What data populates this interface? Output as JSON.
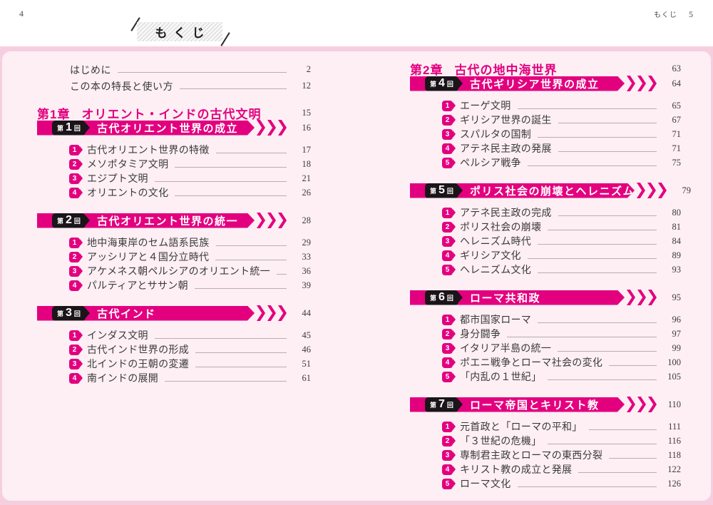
{
  "page": {
    "folio_left": "4",
    "folio_right_label": "もくじ",
    "folio_right_number": "5",
    "title": "もくじ"
  },
  "colors": {
    "magenta": "#e3007f",
    "outer_pink": "#f5cfdf",
    "inner_pink": "#fdeff4",
    "label_black": "#1b1418",
    "leader_line": "#b9adb3"
  },
  "front_matter": [
    {
      "label": "はじめに",
      "page": "2"
    },
    {
      "label": "この本の特長と使い方",
      "page": "12"
    }
  ],
  "columns": [
    {
      "side": "left",
      "blocks": [
        {
          "type": "front_matter"
        },
        {
          "type": "chapter",
          "no": "第1章",
          "title": "オリエント・インドの古代文明",
          "page": "15"
        },
        {
          "type": "section",
          "label_prefix": "第",
          "label_no": "1",
          "label_suffix": "回",
          "title": "古代オリエント世界の成立",
          "page": "16",
          "items": [
            {
              "no": "1",
              "label": "古代オリエント世界の特徴",
              "page": "17"
            },
            {
              "no": "2",
              "label": "メソポタミア文明",
              "page": "18"
            },
            {
              "no": "3",
              "label": "エジプト文明",
              "page": "21"
            },
            {
              "no": "4",
              "label": "オリエントの文化",
              "page": "26"
            }
          ]
        },
        {
          "type": "section",
          "label_prefix": "第",
          "label_no": "2",
          "label_suffix": "回",
          "title": "古代オリエント世界の統一",
          "page": "28",
          "items": [
            {
              "no": "1",
              "label": "地中海東岸のセム語系民族",
              "page": "29"
            },
            {
              "no": "2",
              "label": "アッシリアと４国分立時代",
              "page": "33"
            },
            {
              "no": "3",
              "label": "アケメネス朝ペルシアのオリエント統一",
              "page": "36"
            },
            {
              "no": "4",
              "label": "パルティアとササン朝",
              "page": "39"
            }
          ]
        },
        {
          "type": "section",
          "label_prefix": "第",
          "label_no": "3",
          "label_suffix": "回",
          "title": "古代インド",
          "page": "44",
          "items": [
            {
              "no": "1",
              "label": "インダス文明",
              "page": "45"
            },
            {
              "no": "2",
              "label": "古代インド世界の形成",
              "page": "46"
            },
            {
              "no": "3",
              "label": "北インドの王朝の変遷",
              "page": "51"
            },
            {
              "no": "4",
              "label": "南インドの展開",
              "page": "61"
            }
          ]
        }
      ]
    },
    {
      "side": "right",
      "blocks": [
        {
          "type": "chapter",
          "no": "第2章",
          "title": "古代の地中海世界",
          "page": "63"
        },
        {
          "type": "section",
          "label_prefix": "第",
          "label_no": "4",
          "label_suffix": "回",
          "title": "古代ギリシア世界の成立",
          "page": "64",
          "items": [
            {
              "no": "1",
              "label": "エーゲ文明",
              "page": "65"
            },
            {
              "no": "2",
              "label": "ギリシア世界の誕生",
              "page": "67"
            },
            {
              "no": "3",
              "label": "スパルタの国制",
              "page": "71"
            },
            {
              "no": "4",
              "label": "アテネ民主政の発展",
              "page": "71"
            },
            {
              "no": "5",
              "label": "ペルシア戦争",
              "page": "75"
            }
          ]
        },
        {
          "type": "section",
          "label_prefix": "第",
          "label_no": "5",
          "label_suffix": "回",
          "title": "ポリス社会の崩壊とヘレニズム",
          "page": "79",
          "items": [
            {
              "no": "1",
              "label": "アテネ民主政の完成",
              "page": "80"
            },
            {
              "no": "2",
              "label": "ポリス社会の崩壊",
              "page": "81"
            },
            {
              "no": "3",
              "label": "ヘレニズム時代",
              "page": "84"
            },
            {
              "no": "4",
              "label": "ギリシア文化",
              "page": "89"
            },
            {
              "no": "5",
              "label": "ヘレニズム文化",
              "page": "93"
            }
          ]
        },
        {
          "type": "section",
          "label_prefix": "第",
          "label_no": "6",
          "label_suffix": "回",
          "title": "ローマ共和政",
          "page": "95",
          "items": [
            {
              "no": "1",
              "label": "都市国家ローマ",
              "page": "96"
            },
            {
              "no": "2",
              "label": "身分闘争",
              "page": "97"
            },
            {
              "no": "3",
              "label": "イタリア半島の統一",
              "page": "99"
            },
            {
              "no": "4",
              "label": "ポエニ戦争とローマ社会の変化",
              "page": "100"
            },
            {
              "no": "5",
              "label": "「内乱の１世紀」",
              "page": "105"
            }
          ]
        },
        {
          "type": "section",
          "label_prefix": "第",
          "label_no": "7",
          "label_suffix": "回",
          "title": "ローマ帝国とキリスト教",
          "page": "110",
          "items": [
            {
              "no": "1",
              "label": "元首政と「ローマの平和」",
              "page": "111"
            },
            {
              "no": "2",
              "label": "「３世紀の危機」",
              "page": "116"
            },
            {
              "no": "3",
              "label": "専制君主政とローマの東西分裂",
              "page": "118"
            },
            {
              "no": "4",
              "label": "キリスト教の成立と発展",
              "page": "122"
            },
            {
              "no": "5",
              "label": "ローマ文化",
              "page": "126"
            }
          ]
        }
      ]
    }
  ]
}
